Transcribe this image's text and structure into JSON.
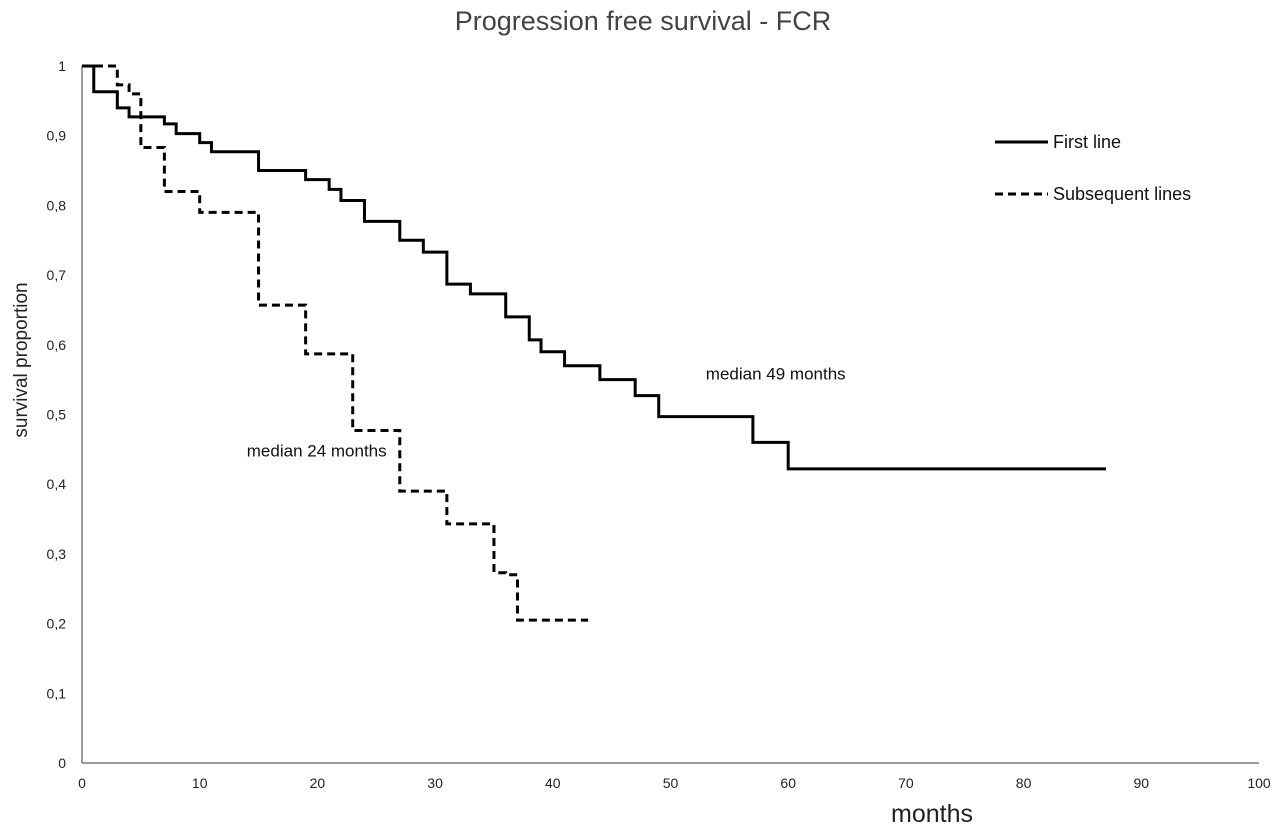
{
  "chart_data": {
    "type": "line",
    "title": "Progression free survival - FCR",
    "xlabel": "months",
    "ylabel": "survival proportion",
    "xlim": [
      0,
      100
    ],
    "ylim": [
      0,
      1
    ],
    "xticks": [
      0,
      10,
      20,
      30,
      40,
      50,
      60,
      70,
      80,
      90,
      100
    ],
    "x_tick_labels": [
      "0",
      "10",
      "20",
      "30",
      "40",
      "50",
      "60",
      "70",
      "80",
      "90",
      "100"
    ],
    "yticks": [
      0,
      0.1,
      0.2,
      0.3,
      0.4,
      0.5,
      0.6,
      0.7,
      0.8,
      0.9,
      1
    ],
    "y_tick_labels": [
      "0",
      "0,1",
      "0,2",
      "0,3",
      "0,4",
      "0,5",
      "0,6",
      "0,7",
      "0,8",
      "0,9",
      "1"
    ],
    "grid": false,
    "legend_position": "top-right",
    "step": true,
    "series": [
      {
        "name": "First line",
        "line_style": "solid",
        "color": "#000000",
        "points": [
          [
            0,
            1.0
          ],
          [
            1,
            0.963
          ],
          [
            3,
            0.94
          ],
          [
            4,
            0.927
          ],
          [
            7,
            0.917
          ],
          [
            8,
            0.903
          ],
          [
            10,
            0.89
          ],
          [
            11,
            0.877
          ],
          [
            15,
            0.85
          ],
          [
            19,
            0.837
          ],
          [
            21,
            0.823
          ],
          [
            22,
            0.807
          ],
          [
            24,
            0.777
          ],
          [
            27,
            0.75
          ],
          [
            29,
            0.733
          ],
          [
            31,
            0.687
          ],
          [
            33,
            0.673
          ],
          [
            36,
            0.64
          ],
          [
            38,
            0.607
          ],
          [
            39,
            0.59
          ],
          [
            41,
            0.57
          ],
          [
            44,
            0.55
          ],
          [
            47,
            0.527
          ],
          [
            49,
            0.497
          ],
          [
            57,
            0.46
          ],
          [
            60,
            0.422
          ],
          [
            87,
            0.422
          ]
        ]
      },
      {
        "name": "Subsequent lines",
        "line_style": "dashed",
        "color": "#000000",
        "points": [
          [
            0,
            1.0
          ],
          [
            2,
            1.0
          ],
          [
            3,
            0.973
          ],
          [
            4,
            0.96
          ],
          [
            5,
            0.883
          ],
          [
            7,
            0.82
          ],
          [
            10,
            0.79
          ],
          [
            14,
            0.79
          ],
          [
            15,
            0.657
          ],
          [
            18,
            0.657
          ],
          [
            19,
            0.587
          ],
          [
            22,
            0.587
          ],
          [
            23,
            0.477
          ],
          [
            26,
            0.477
          ],
          [
            27,
            0.39
          ],
          [
            30,
            0.39
          ],
          [
            31,
            0.343
          ],
          [
            34,
            0.343
          ],
          [
            35,
            0.273
          ],
          [
            36,
            0.27
          ],
          [
            37,
            0.205
          ],
          [
            43,
            0.205
          ]
        ]
      }
    ],
    "annotations": [
      {
        "text": "median 49 months",
        "x": 53,
        "y": 0.55
      },
      {
        "text": "median 24 months",
        "x": 14,
        "y": 0.44
      }
    ]
  },
  "colors": {
    "axis": "#7a7a7a",
    "line": "#000000",
    "title": "#444444"
  }
}
